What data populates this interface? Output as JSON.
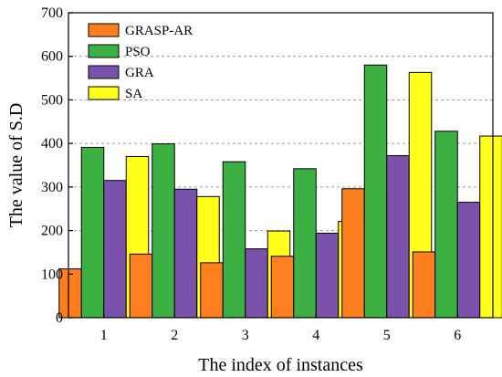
{
  "chart_data": {
    "type": "bar",
    "title": "",
    "xlabel": "The index of instances",
    "ylabel": "The value of S.D",
    "categories": [
      "1",
      "2",
      "3",
      "4",
      "5",
      "6"
    ],
    "ylim": [
      0,
      700
    ],
    "yticks": [
      0,
      100,
      200,
      300,
      400,
      500,
      600,
      700
    ],
    "grid": "horizontal-dashed",
    "legend_position": "top-left",
    "series": [
      {
        "name": "GRASP-AR",
        "color": "#ff7f1e",
        "values": [
          112,
          146,
          126,
          141,
          296,
          151
        ]
      },
      {
        "name": "PSO",
        "color": "#3cb043",
        "values": [
          391,
          399,
          358,
          342,
          580,
          428
        ]
      },
      {
        "name": "GRA",
        "color": "#7b52ab",
        "values": [
          315,
          295,
          158,
          194,
          372,
          265
        ]
      },
      {
        "name": "SA",
        "color": "#ffff1a",
        "values": [
          370,
          278,
          199,
          221,
          563,
          417
        ]
      }
    ]
  }
}
